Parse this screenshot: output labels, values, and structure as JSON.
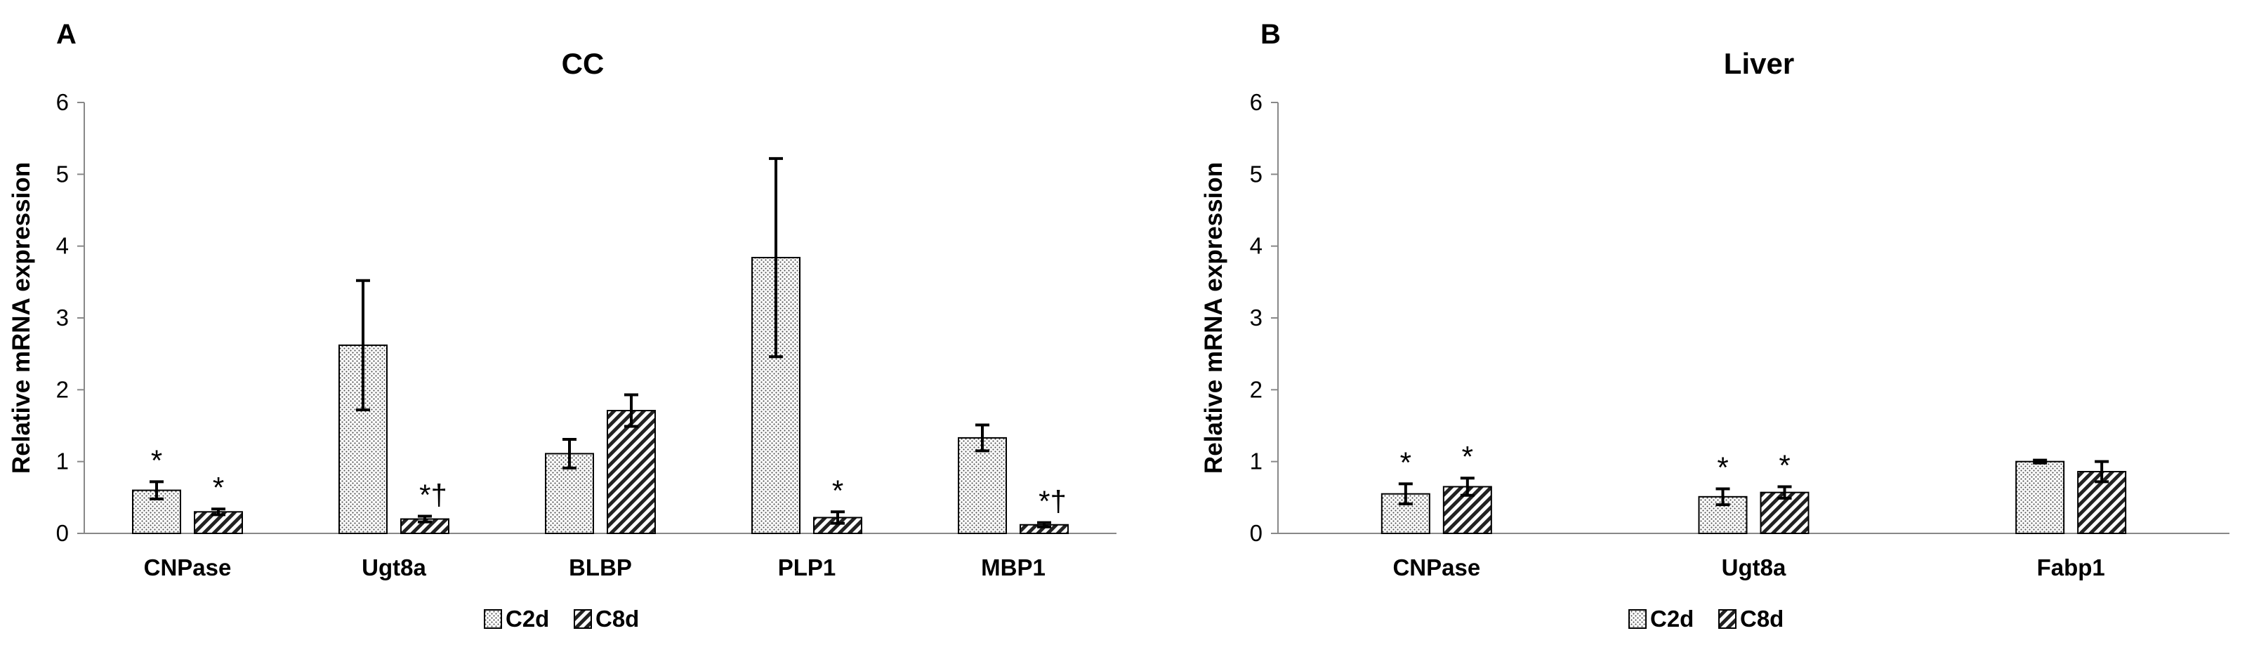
{
  "chart_data": [
    {
      "panel": "A",
      "type": "bar",
      "title": "CC",
      "xlabel": "",
      "ylabel": "Relative mRNA expression",
      "ylim": [
        0,
        6
      ],
      "yticks": [
        0,
        1,
        2,
        3,
        4,
        5,
        6
      ],
      "grid": false,
      "legend": "bottom",
      "categories": [
        "CNPase",
        "Ugt8a",
        "BLBP",
        "PLP1",
        "MBP1"
      ],
      "series": [
        {
          "name": "C2d",
          "pattern": "dots",
          "values": [
            0.6,
            2.62,
            1.11,
            3.84,
            1.33
          ],
          "errors": [
            0.12,
            0.9,
            0.2,
            1.38,
            0.18
          ],
          "annotations": [
            "*",
            "",
            "",
            "",
            ""
          ]
        },
        {
          "name": "C8d",
          "pattern": "hatch",
          "values": [
            0.3,
            0.2,
            1.71,
            0.22,
            0.12
          ],
          "errors": [
            0.04,
            0.04,
            0.22,
            0.08,
            0.03
          ],
          "annotations": [
            "*",
            "*†",
            "",
            "*",
            "*†"
          ]
        }
      ]
    },
    {
      "panel": "B",
      "type": "bar",
      "title": "Liver",
      "xlabel": "",
      "ylabel": "Relative mRNA expression",
      "ylim": [
        0,
        6
      ],
      "yticks": [
        0,
        1,
        2,
        3,
        4,
        5,
        6
      ],
      "grid": false,
      "legend": "bottom",
      "categories": [
        "CNPase",
        "Ugt8a",
        "Fabp1"
      ],
      "series": [
        {
          "name": "C2d",
          "pattern": "dots",
          "values": [
            0.55,
            0.51,
            1.0
          ],
          "errors": [
            0.14,
            0.11,
            0.02
          ],
          "annotations": [
            "*",
            "*",
            ""
          ]
        },
        {
          "name": "C8d",
          "pattern": "hatch",
          "values": [
            0.65,
            0.57,
            0.86
          ],
          "errors": [
            0.12,
            0.08,
            0.14
          ],
          "annotations": [
            "*",
            "*",
            ""
          ]
        }
      ]
    }
  ]
}
